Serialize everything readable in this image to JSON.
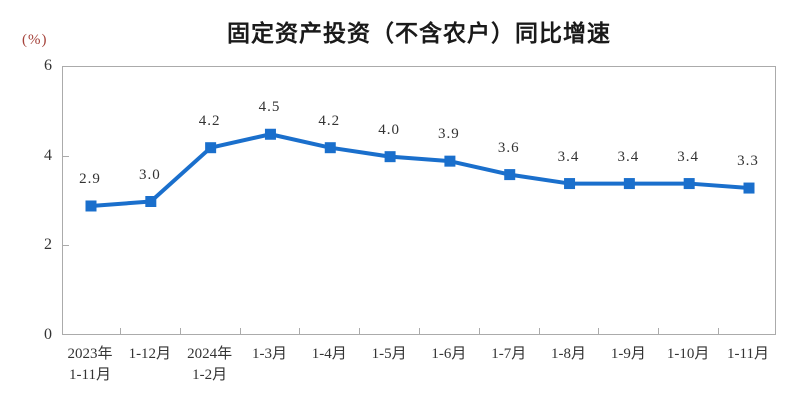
{
  "chart_data": {
    "type": "line",
    "title": "固定资产投资（不含农户）同比增速",
    "ylabel": "(%)",
    "categories": [
      "2023年\n1-11月",
      "1-12月",
      "2024年\n1-2月",
      "1-3月",
      "1-4月",
      "1-5月",
      "1-6月",
      "1-7月",
      "1-8月",
      "1-9月",
      "1-10月",
      "1-11月"
    ],
    "values": [
      2.9,
      3.0,
      4.2,
      4.5,
      4.2,
      4.0,
      3.9,
      3.6,
      3.4,
      3.4,
      3.4,
      3.3
    ],
    "data_labels": [
      "2.9",
      "3.0",
      "4.2",
      "4.5",
      "4.2",
      "4.0",
      "3.9",
      "3.6",
      "3.4",
      "3.4",
      "3.4",
      "3.3"
    ],
    "ylim": [
      0,
      6
    ],
    "yticks": [
      0,
      2,
      4,
      6
    ],
    "grid": false,
    "legend": "none",
    "marker": "square"
  },
  "colors": {
    "line": "#1a6fcc",
    "axis_border": "#ababab",
    "text": "#333333",
    "unit_label": "#a5423a"
  }
}
